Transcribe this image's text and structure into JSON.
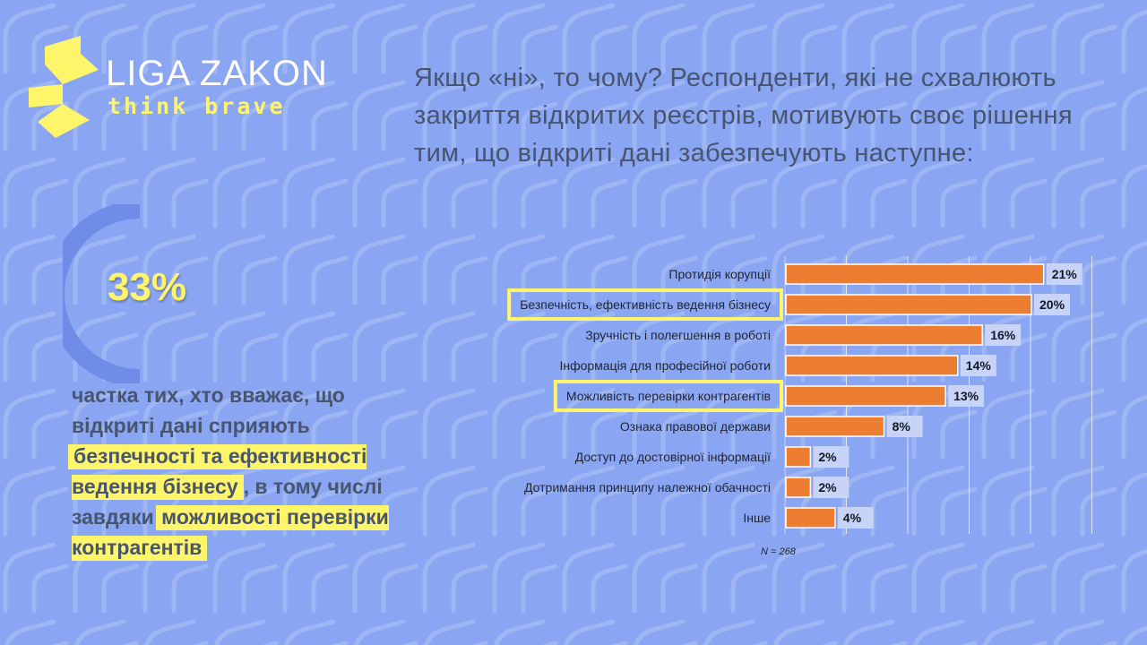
{
  "brand": {
    "name": "LIGA ZAKON",
    "tagline": "think brave",
    "colors": {
      "background": "#8aa6f2",
      "yellow": "#fff56b",
      "bar": "#ed7d31",
      "text": "#47556f"
    }
  },
  "heading": "Якщо «ні», то чому? Респонденти, які не схвалюють закриття відкритих реєстрів, мотивують своє рішення тим, що відкриті дані забезпечують наступне:",
  "stat": {
    "percent_label": "33%",
    "percent_value": 33,
    "text_parts": {
      "p1": "частка тих, хто вважає, що відкриті дані сприяють ",
      "h1": "безпечності та ефективності ведення бізнесу",
      "p2": ", в тому числі завдяки ",
      "h2": "можливості перевірки контрагентів"
    }
  },
  "chart_data": {
    "type": "bar",
    "orientation": "horizontal",
    "categories": [
      "Протидія корупції",
      "Безпечність, ефективність ведення бізнесу",
      "Зручність і полегшення в роботі",
      "Інформація для професійної роботи",
      "Можливість перевірки контрагентів",
      "Ознака правової держави",
      "Доступ до достовірної інформації",
      "Дотримання принципу належної обачності",
      "Інше"
    ],
    "values": [
      21,
      20,
      16,
      14,
      13,
      8,
      2,
      2,
      4
    ],
    "value_labels": [
      "21%",
      "20%",
      "16%",
      "14%",
      "13%",
      "8%",
      "2%",
      "2%",
      "4%"
    ],
    "highlighted": [
      1,
      4
    ],
    "bar_color": "#ed7d31",
    "highlight_color": "#fff56b",
    "xlim": [
      0,
      25
    ],
    "grid": true,
    "note": "N = 268"
  }
}
